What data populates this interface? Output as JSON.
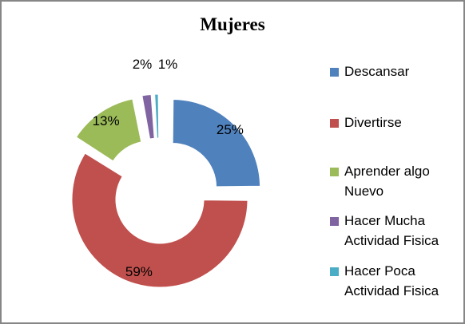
{
  "chart_data": {
    "type": "pie",
    "style": "exploded-donut",
    "title": "Mujeres",
    "legend_position": "right",
    "labels_shown_as": "percent",
    "series": [
      {
        "name": "Descansar",
        "value": 25,
        "label": "25%",
        "color": "#4F81BD"
      },
      {
        "name": "Divertirse",
        "value": 59,
        "label": "59%",
        "color": "#C0504D"
      },
      {
        "name": "Aprender algo Nuevo",
        "value": 13,
        "label": "13%",
        "color": "#9BBB59"
      },
      {
        "name": "Hacer Mucha Actividad Fisica",
        "value": 2,
        "label": "2%",
        "color": "#8064A2"
      },
      {
        "name": "Hacer Poca Actividad Fisica",
        "value": 1,
        "label": "1%",
        "color": "#4BACC6"
      }
    ]
  },
  "legend": {
    "items": [
      {
        "label": "Descansar"
      },
      {
        "label": "Divertirse"
      },
      {
        "label": "Aprender algo\nNuevo"
      },
      {
        "label": "Hacer Mucha\nActividad Fisica"
      },
      {
        "label": "Hacer Poca\nActividad Fisica"
      }
    ]
  }
}
